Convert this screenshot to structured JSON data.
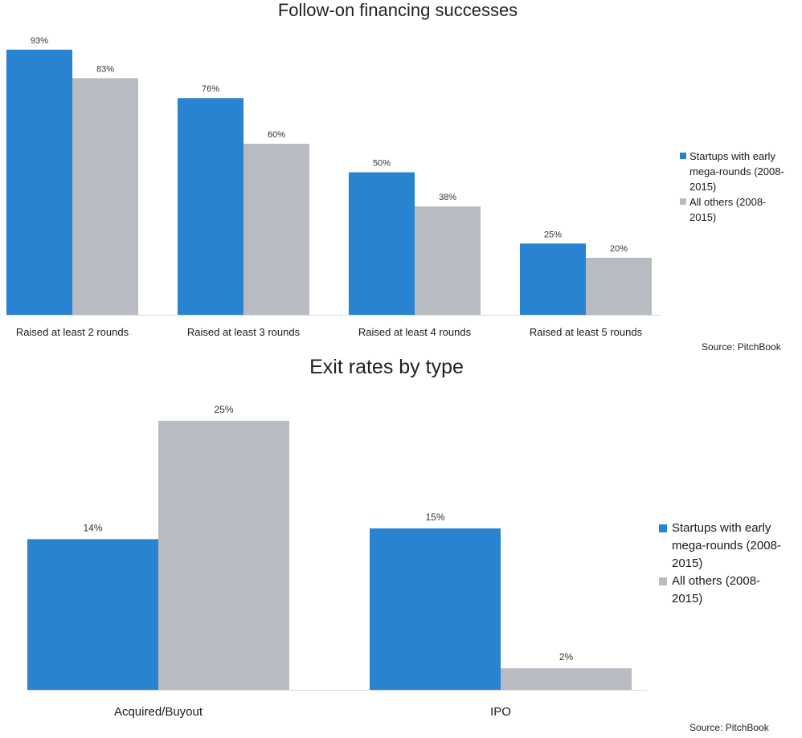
{
  "chart_data": [
    {
      "type": "bar",
      "title": "Follow-on financing successes",
      "categories": [
        "Raised at least 2 rounds",
        "Raised at least 3 rounds",
        "Raised at least 4 rounds",
        "Raised at  least 5 rounds"
      ],
      "series": [
        {
          "name": "Startups with early mega-rounds (2008-2015)",
          "values": [
            93,
            76,
            50,
            25
          ],
          "labels": [
            "93%",
            "76%",
            "50%",
            "25%"
          ],
          "color": "#2884d1"
        },
        {
          "name": "All others (2008-2015)",
          "values": [
            83,
            60,
            38,
            20
          ],
          "labels": [
            "83%",
            "60%",
            "38%",
            "20%"
          ],
          "color": "#b8bcc2"
        }
      ],
      "ylim": [
        0,
        100
      ],
      "xlabel": "",
      "ylabel": "",
      "legend_lines": [
        [
          "Startups with early",
          "mega-rounds (2008-",
          "2015)"
        ],
        [
          "All others (2008-",
          "2015)"
        ]
      ],
      "legend_position": "right",
      "source": "Source: PitchBook"
    },
    {
      "type": "bar",
      "title": "Exit rates by type",
      "categories": [
        "Acquired/Buyout",
        "IPO"
      ],
      "series": [
        {
          "name": "Startups with early mega-rounds (2008-2015)",
          "values": [
            14,
            15
          ],
          "labels": [
            "14%",
            "15%"
          ],
          "color": "#2884d1"
        },
        {
          "name": "All others (2008-2015)",
          "values": [
            25,
            2
          ],
          "labels": [
            "25%",
            "2%"
          ],
          "color": "#b8bcc2"
        }
      ],
      "ylim": [
        0,
        30
      ],
      "xlabel": "",
      "ylabel": "",
      "legend_lines": [
        [
          "Startups with early",
          "mega-rounds (2008-",
          "2015)"
        ],
        [
          "All others (2008-",
          "2015)"
        ]
      ],
      "legend_position": "right",
      "source": "Source: PitchBook"
    }
  ]
}
